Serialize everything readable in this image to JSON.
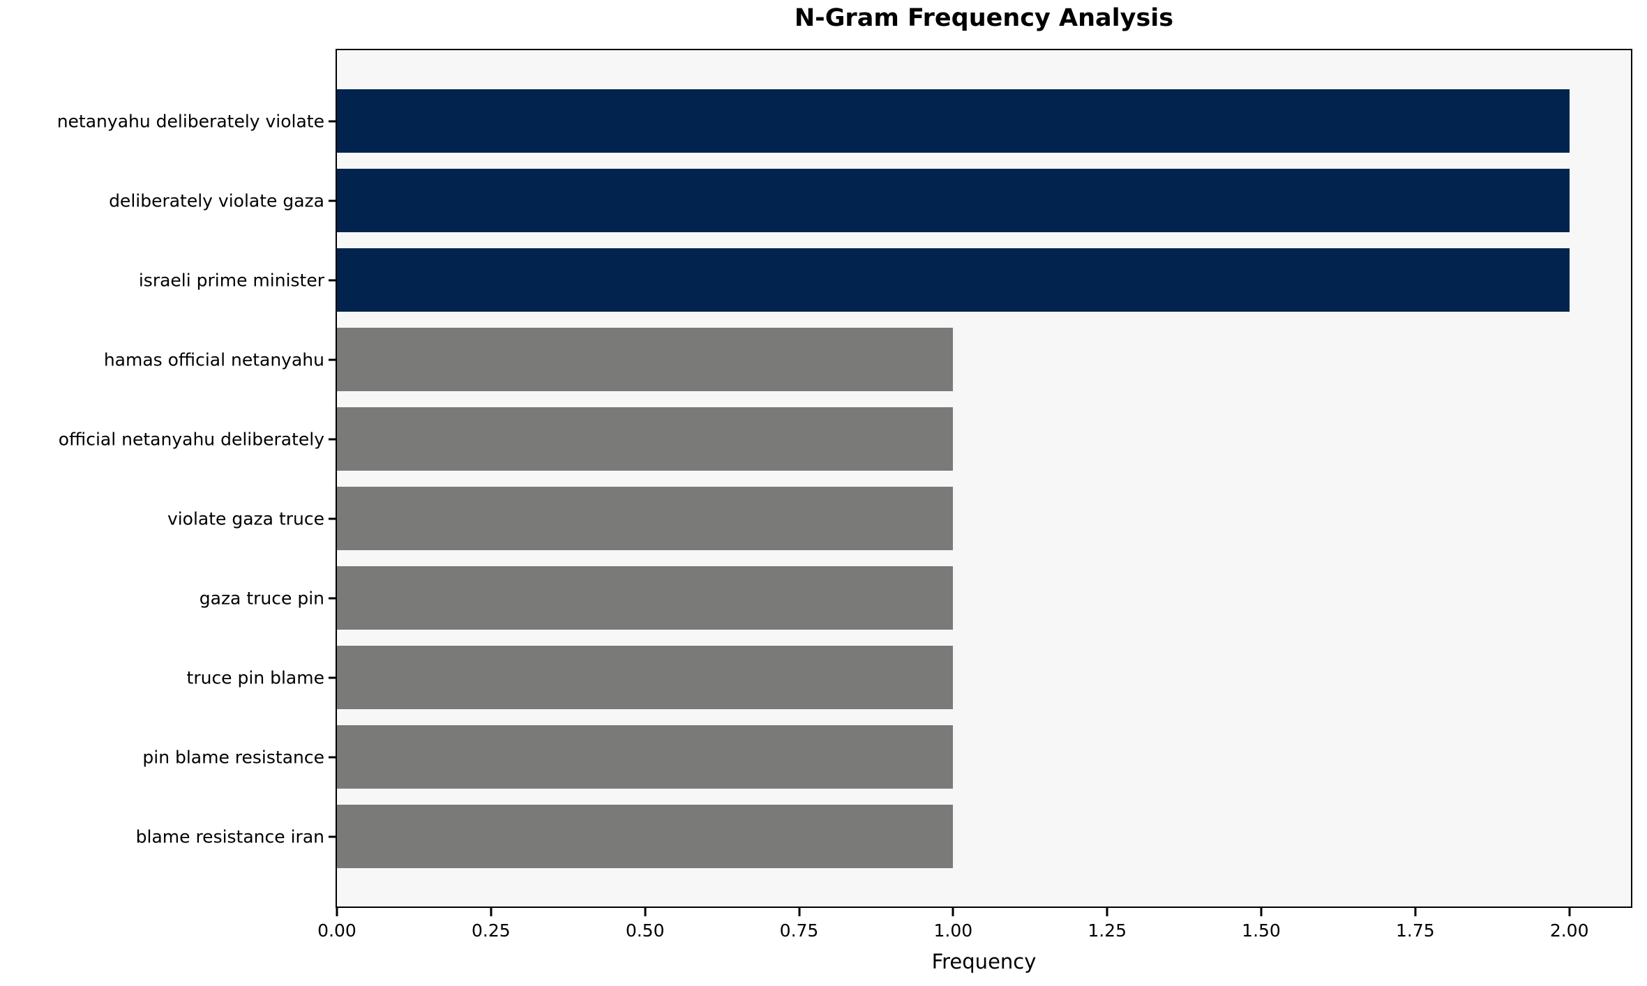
{
  "chart_data": {
    "type": "bar",
    "orientation": "horizontal",
    "title": "N-Gram Frequency Analysis",
    "xlabel": "Frequency",
    "ylabel": "",
    "categories": [
      "netanyahu deliberately violate",
      "deliberately violate gaza",
      "israeli prime minister",
      "hamas official netanyahu",
      "official netanyahu deliberately",
      "violate gaza truce",
      "gaza truce pin",
      "truce pin blame",
      "pin blame resistance",
      "blame resistance iran"
    ],
    "values": [
      2,
      2,
      2,
      1,
      1,
      1,
      1,
      1,
      1,
      1
    ],
    "xlim": [
      0,
      2.1
    ],
    "xticks": [
      {
        "value": 0.0,
        "label": "0.00"
      },
      {
        "value": 0.25,
        "label": "0.25"
      },
      {
        "value": 0.5,
        "label": "0.50"
      },
      {
        "value": 0.75,
        "label": "0.75"
      },
      {
        "value": 1.0,
        "label": "1.00"
      },
      {
        "value": 1.25,
        "label": "1.25"
      },
      {
        "value": 1.5,
        "label": "1.50"
      },
      {
        "value": 1.75,
        "label": "1.75"
      },
      {
        "value": 2.0,
        "label": "2.00"
      }
    ],
    "grid": false,
    "legend": null,
    "colors": {
      "bar_highlight": "#02234d",
      "bar_default": "#7a7a78",
      "plot_background": "#f7f7f7",
      "figure_background": "#ffffff",
      "axis": "#000000",
      "text": "#000000"
    }
  }
}
